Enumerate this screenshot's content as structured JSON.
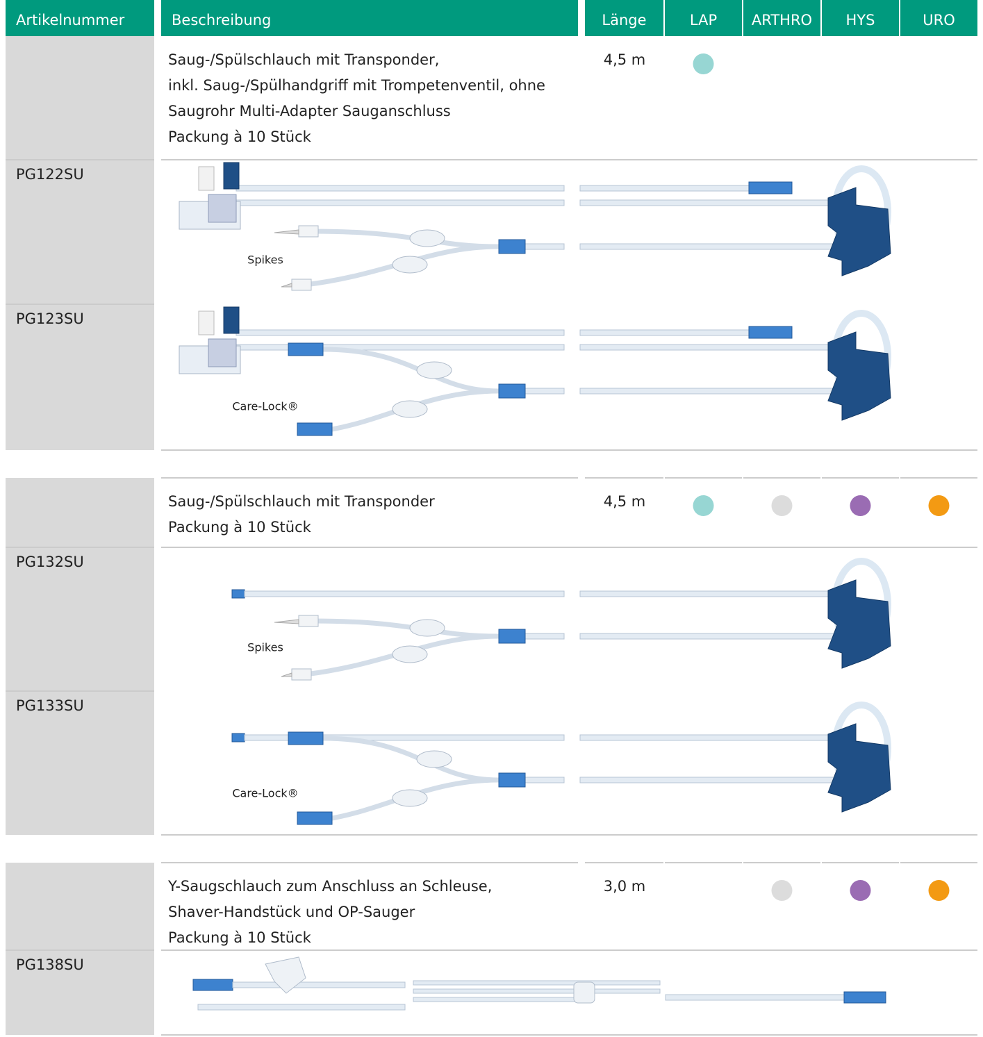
{
  "header": {
    "columns": [
      "Artikelnummer",
      "Beschreibung",
      "Länge",
      "LAP",
      "ARTHRO",
      "HYS",
      "URO"
    ]
  },
  "indication_colors": [
    "#97d6d3",
    "#dcdcdc",
    "#9a6cb3",
    "#f39a13"
  ],
  "groups": [
    {
      "description": [
        "Saug-/Spülschlauch mit Transponder,",
        "inkl. Saug-/Spülhandgriff mit Trompetenventil, ohne",
        "Saugrohr Multi-Adapter Sauganschluss",
        "Packung à 10 Stück"
      ],
      "length": "4,5 m",
      "indications": [
        true,
        false,
        false,
        false
      ],
      "products": [
        {
          "code": "PG122SU",
          "label": "Spikes"
        },
        {
          "code": "PG123SU",
          "label": "Care-Lock®"
        }
      ]
    },
    {
      "description": [
        "Saug-/Spülschlauch mit Transponder",
        "Packung à 10 Stück"
      ],
      "length": "4,5 m",
      "indications": [
        true,
        true,
        true,
        true
      ],
      "products": [
        {
          "code": "PG132SU",
          "label": "Spikes"
        },
        {
          "code": "PG133SU",
          "label": "Care-Lock®"
        }
      ]
    },
    {
      "description": [
        "Y-Saugschlauch zum Anschluss an Schleuse,",
        "Shaver-Handstück und OP-Sauger",
        "Packung à 10 Stück"
      ],
      "length": "3,0 m",
      "indications": [
        false,
        true,
        true,
        true
      ],
      "products": [
        {
          "code": "PG138SU"
        }
      ]
    }
  ]
}
